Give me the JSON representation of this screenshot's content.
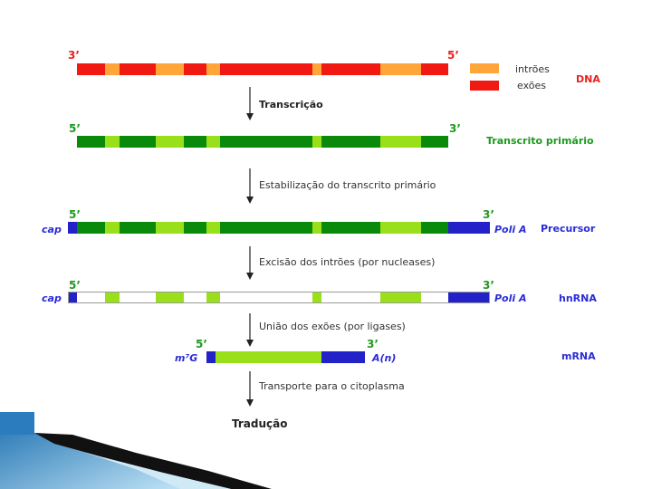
{
  "colors": {
    "exon_dna": "#f01a12",
    "intron_dna": "#ffa53a",
    "exon_rna": "#0a8a0a",
    "intron_rna": "#9ae01a",
    "cap": "#2222c8",
    "removed": "#ffffff",
    "label_red": "#e8231f",
    "label_green": "#1e9a1e",
    "label_blue": "#2b2bd6"
  },
  "legend": {
    "introns": "intrões",
    "exons": "exões",
    "dna": "DNA"
  },
  "rows": {
    "dna": {
      "left": "3’",
      "right": "5’"
    },
    "primary": {
      "left": "5’",
      "right": "3’",
      "side": "Transcrito primário"
    },
    "precursor": {
      "left": "5’",
      "right": "3’",
      "cap": "cap",
      "polya": "Poli A",
      "side": "Precursor"
    },
    "hnrna": {
      "left": "5’",
      "right": "3’",
      "cap": "cap",
      "polya": "Poli A",
      "side": "hnRNA"
    },
    "mrna": {
      "left": "5’",
      "right": "3’",
      "cap": "m⁷G",
      "polya": "A(n)",
      "side": "mRNA"
    }
  },
  "steps": {
    "transcription": "Transcrição",
    "stabilization": "Estabilização do transcrito primário",
    "excision": "Excisão dos intrões (por nucleases)",
    "union": "União dos exões (por ligases)",
    "transport": "Transporte para o citoplasma",
    "translation": "Tradução"
  }
}
